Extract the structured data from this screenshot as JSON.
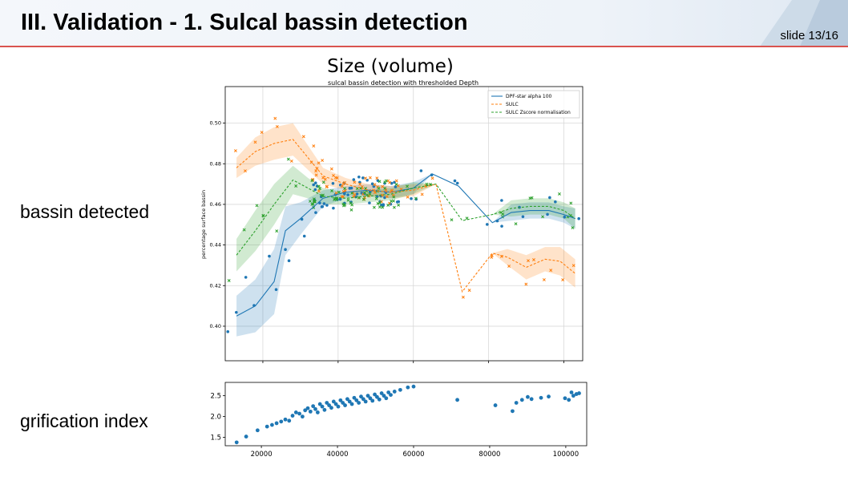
{
  "header": {
    "title": "III. Validation - 1. Sulcal bassin detection",
    "slide_number": "slide 13/16",
    "accent_color": "#d9534f"
  },
  "labels": {
    "top": "bassin detected",
    "bottom": "grification index"
  },
  "chart_data": [
    {
      "type": "line",
      "title": "Size (volume)",
      "subtitle": "sulcal bassin detection with thresholded Depth",
      "xlabel": "",
      "ylabel": "percentage surface bassin",
      "xlim": [
        10000,
        105000
      ],
      "ylim": [
        0.383,
        0.518
      ],
      "xticks": [
        20000,
        40000,
        60000,
        80000,
        100000
      ],
      "yticks": [
        0.4,
        0.42,
        0.44,
        0.46,
        0.48,
        0.5
      ],
      "ytick_labels": [
        "0.40",
        "0.42",
        "0.44",
        "0.46",
        "0.48",
        "0.50"
      ],
      "grid": true,
      "legend_position": "top-right",
      "series": [
        {
          "name": "DPF-star alpha 100",
          "color": "#1f77b4",
          "dash": "solid",
          "marker": "dot",
          "x": [
            13000,
            18000,
            23000,
            26000,
            30000,
            36000,
            42000,
            48000,
            54000,
            60000,
            65000,
            72000,
            81000,
            86000,
            91000,
            96000,
            100000,
            103000
          ],
          "y": [
            0.405,
            0.41,
            0.422,
            0.447,
            0.453,
            0.463,
            0.466,
            0.467,
            0.466,
            0.468,
            0.475,
            0.469,
            0.451,
            0.456,
            0.457,
            0.457,
            0.455,
            0.453
          ],
          "band": [
            0.01,
            0.013,
            0.016,
            0.012,
            0.008,
            0.004,
            0.003,
            0.003,
            0.003,
            0.003,
            0.0,
            0.0,
            0.0,
            0.004,
            0.004,
            0.004,
            0.004,
            0.005
          ]
        },
        {
          "name": "SULC",
          "color": "#ff7f0e",
          "dash": "dashed",
          "marker": "x",
          "x": [
            13000,
            18000,
            23000,
            28000,
            32000,
            36000,
            42000,
            48000,
            54000,
            60000,
            66000,
            73000,
            81000,
            85000,
            90000,
            95000,
            99000,
            103000
          ],
          "y": [
            0.478,
            0.486,
            0.49,
            0.492,
            0.483,
            0.474,
            0.47,
            0.467,
            0.466,
            0.467,
            0.47,
            0.417,
            0.436,
            0.434,
            0.429,
            0.433,
            0.432,
            0.426
          ],
          "band": [
            0.005,
            0.007,
            0.008,
            0.008,
            0.006,
            0.004,
            0.003,
            0.003,
            0.003,
            0.003,
            0.0,
            0.0,
            0.0,
            0.004,
            0.006,
            0.006,
            0.007,
            0.007
          ]
        },
        {
          "name": "SULC Zscore normalisation",
          "color": "#2ca02c",
          "dash": "dashed",
          "marker": "x",
          "x": [
            13000,
            18000,
            23000,
            28000,
            32000,
            36000,
            42000,
            48000,
            54000,
            60000,
            66000,
            73000,
            81000,
            86000,
            91000,
            96000,
            100000,
            103000
          ],
          "y": [
            0.435,
            0.447,
            0.46,
            0.472,
            0.468,
            0.464,
            0.463,
            0.464,
            0.465,
            0.468,
            0.47,
            0.452,
            0.455,
            0.458,
            0.459,
            0.459,
            0.457,
            0.453
          ],
          "band": [
            0.008,
            0.01,
            0.01,
            0.007,
            0.005,
            0.004,
            0.003,
            0.003,
            0.003,
            0.003,
            0.0,
            0.0,
            0.0,
            0.004,
            0.004,
            0.004,
            0.004,
            0.005
          ]
        }
      ]
    },
    {
      "type": "scatter",
      "title": "",
      "xlabel": "",
      "ylabel": "",
      "xlim": [
        10500,
        105500
      ],
      "ylim": [
        1.3,
        2.82
      ],
      "xticks": [
        20000,
        40000,
        60000,
        80000,
        100000
      ],
      "yticks": [
        1.5,
        2.0,
        2.5
      ],
      "ytick_labels": [
        "1.5",
        "2.0",
        "2.5"
      ],
      "grid": false,
      "color": "#1f77b4",
      "x": [
        13500,
        16000,
        19000,
        21500,
        22800,
        24000,
        25200,
        26300,
        27300,
        28200,
        29100,
        30000,
        30800,
        31500,
        32200,
        32900,
        33600,
        34200,
        34800,
        35400,
        36000,
        36600,
        37200,
        37800,
        38400,
        39000,
        39600,
        40200,
        40800,
        41400,
        42000,
        42600,
        43200,
        43800,
        44400,
        45000,
        45600,
        46200,
        46800,
        47400,
        48000,
        48600,
        49200,
        49800,
        50400,
        51000,
        51600,
        52200,
        52800,
        53400,
        54000,
        55000,
        56500,
        58500,
        60000,
        71500,
        81500,
        86000,
        87000,
        88500,
        90000,
        91000,
        93500,
        95500,
        99800,
        100800,
        101500,
        102000,
        102800,
        103500
      ],
      "y": [
        1.38,
        1.52,
        1.67,
        1.76,
        1.8,
        1.84,
        1.88,
        1.93,
        1.9,
        2.02,
        2.1,
        2.07,
        2.0,
        2.15,
        2.2,
        2.12,
        2.25,
        2.18,
        2.1,
        2.3,
        2.24,
        2.16,
        2.33,
        2.27,
        2.21,
        2.36,
        2.3,
        2.24,
        2.39,
        2.33,
        2.27,
        2.42,
        2.36,
        2.3,
        2.45,
        2.39,
        2.33,
        2.48,
        2.42,
        2.36,
        2.5,
        2.44,
        2.38,
        2.53,
        2.47,
        2.41,
        2.56,
        2.5,
        2.44,
        2.58,
        2.52,
        2.6,
        2.64,
        2.7,
        2.72,
        2.4,
        2.27,
        2.13,
        2.33,
        2.4,
        2.47,
        2.42,
        2.45,
        2.48,
        2.44,
        2.4,
        2.58,
        2.5,
        2.54,
        2.56
      ]
    }
  ]
}
